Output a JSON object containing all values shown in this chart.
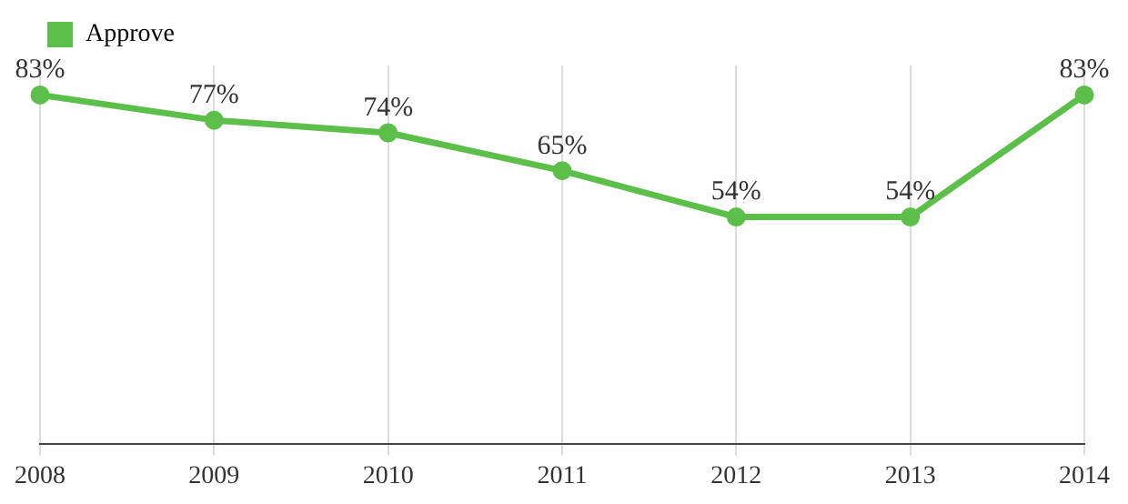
{
  "chart_data": {
    "type": "line",
    "categories": [
      "2008",
      "2009",
      "2010",
      "2011",
      "2012",
      "2013",
      "2014"
    ],
    "series": [
      {
        "name": "Approve",
        "color": "#5cbf4a",
        "values": [
          83,
          77,
          74,
          65,
          54,
          54,
          83
        ],
        "value_labels": [
          "83%",
          "77%",
          "74%",
          "65%",
          "54%",
          "54%",
          "83%"
        ]
      }
    ],
    "ylim": [
      0,
      90
    ],
    "tick_labels": "x",
    "grid": "x",
    "legend": "top left",
    "marker": "circle",
    "line_style": "solid"
  }
}
